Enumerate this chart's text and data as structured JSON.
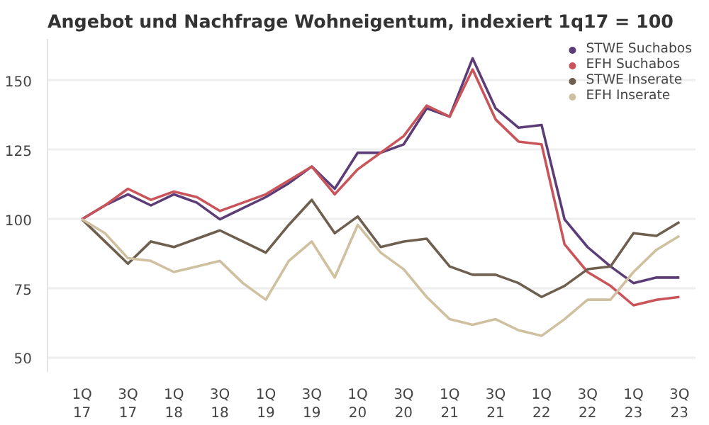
{
  "chart_data": {
    "type": "line",
    "title": "Angebot und Nachfrage Wohneigentum, indexiert 1q17 = 100",
    "categories": [
      "1Q\n17",
      null,
      "3Q\n17",
      null,
      "1Q\n18",
      null,
      "3Q\n18",
      null,
      "1Q\n19",
      null,
      "3Q\n19",
      null,
      "1Q\n20",
      null,
      "3Q\n20",
      null,
      "1Q\n21",
      null,
      "3Q\n21",
      null,
      "1Q\n22",
      null,
      "3Q\n22",
      null,
      "1Q\n23",
      null,
      "3Q\n23"
    ],
    "series": [
      {
        "name": "STWE Suchabos",
        "color": "#5c3d78",
        "values": [
          100,
          105,
          109,
          105,
          109,
          106,
          100,
          104,
          108,
          113,
          119,
          111,
          124,
          124,
          127,
          140,
          137,
          158,
          140,
          133,
          134,
          100,
          90,
          83,
          77,
          79,
          79
        ]
      },
      {
        "name": "EFH Suchabos",
        "color": "#c9545a",
        "values": [
          100,
          105,
          111,
          107,
          110,
          108,
          103,
          106,
          109,
          114,
          119,
          109,
          118,
          124,
          130,
          141,
          137,
          154,
          136,
          128,
          127,
          91,
          81,
          76,
          69,
          71,
          72
        ]
      },
      {
        "name": "STWE Inserate",
        "color": "#6e5f4e",
        "values": [
          100,
          92,
          84,
          92,
          90,
          93,
          96,
          92,
          88,
          98,
          107,
          95,
          101,
          90,
          92,
          93,
          83,
          80,
          80,
          77,
          72,
          76,
          82,
          83,
          95,
          94,
          99
        ]
      },
      {
        "name": "EFH Inserate",
        "color": "#cfc0a0",
        "values": [
          100,
          95,
          86,
          85,
          81,
          83,
          85,
          77,
          71,
          85,
          92,
          79,
          98,
          88,
          82,
          72,
          64,
          62,
          64,
          60,
          58,
          64,
          71,
          71,
          81,
          89,
          94
        ]
      }
    ],
    "ylim": [
      45,
      165
    ],
    "yticks": [
      50,
      75,
      100,
      125,
      150
    ],
    "grid": "y",
    "legend": "top right",
    "marker": "none",
    "line_style": "solid"
  }
}
